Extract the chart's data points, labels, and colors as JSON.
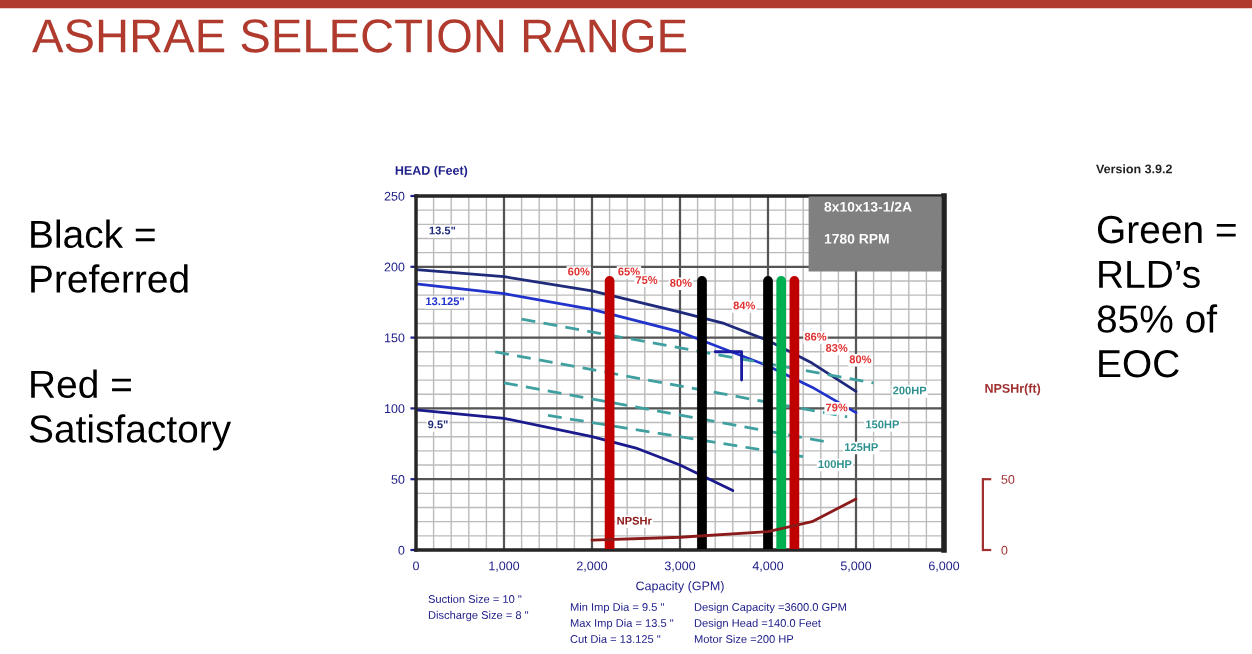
{
  "chart_data": {
    "type": "line",
    "title": "ASHRAE SELECTION RANGE",
    "xlabel": "Capacity (GPM)",
    "ylabel": "HEAD (Feet)",
    "y2label": "NPSHr(ft)",
    "xlim": [
      0,
      6000
    ],
    "xticks": [
      0,
      {
        "value": 1000,
        "label": "1,000"
      },
      {
        "value": 2000,
        "label": "2,000"
      },
      {
        "value": 3000,
        "label": "3,000"
      },
      {
        "value": 4000,
        "label": "4,000"
      },
      {
        "value": 5000,
        "label": "5,000"
      },
      {
        "value": 6000,
        "label": "6,000"
      }
    ],
    "ylim": [
      0,
      250
    ],
    "yticks": [
      0,
      50,
      100,
      150,
      200,
      250
    ],
    "y2lim": [
      0,
      250
    ],
    "y2ticks": [
      0,
      50
    ],
    "grid": true,
    "marker": "none",
    "series": [
      {
        "color": "#1f2a7a",
        "x": [
          0,
          1000,
          2000,
          3000,
          3500,
          4000,
          4500,
          5000
        ],
        "values": [
          198,
          193,
          183,
          168,
          160,
          148,
          132,
          112
        ]
      },
      {
        "color": "#2233cc",
        "x": [
          0,
          1000,
          2000,
          3000,
          4000,
          4500,
          5000
        ],
        "values": [
          188,
          181,
          170,
          154,
          130,
          115,
          97
        ]
      },
      {
        "color": "#1a1a8c",
        "x": [
          0,
          1000,
          2000,
          2500,
          3000,
          3600
        ],
        "values": [
          99,
          93,
          80,
          72,
          60,
          42
        ]
      },
      {
        "color": "#8b1a1a",
        "axis": "y2",
        "x": [
          2000,
          3000,
          4000,
          4500,
          5000
        ],
        "values": [
          7,
          9,
          13,
          20,
          36
        ]
      },
      {
        "color": "#40a0a0",
        "line_style": "dashed",
        "x": [
          1200,
          5200
        ],
        "values": [
          163,
          118
        ]
      },
      {
        "color": "#40a0a0",
        "line_style": "dashed",
        "x": [
          900,
          4900
        ],
        "values": [
          140,
          94
        ]
      },
      {
        "color": "#40a0a0",
        "line_style": "dashed",
        "x": [
          1000,
          4700
        ],
        "values": [
          118,
          76
        ]
      },
      {
        "color": "#40a0a0",
        "line_style": "dashed",
        "x": [
          1500,
          4400
        ],
        "values": [
          95,
          66
        ]
      },
      {
        "color": "#1a1aa0",
        "x": [
          3400,
          3700,
          3700
        ],
        "values": [
          140,
          140,
          120
        ]
      }
    ],
    "ref_lines": [
      {
        "axis": "x",
        "value": 2200,
        "color": "#c00000"
      },
      {
        "axis": "x",
        "value": 3250,
        "color": "#000000"
      },
      {
        "axis": "x",
        "value": 4000,
        "color": "#000000"
      },
      {
        "axis": "x",
        "value": 4150,
        "color": "#00b050"
      },
      {
        "axis": "x",
        "value": 4300,
        "color": "#c00000"
      }
    ],
    "annotations": [
      "Black =\nPreferred",
      "Red =\nSatisfactory",
      "Green =\nRLD’s\n85% of\nEOC",
      "Version 3.9.2",
      "8x10x13-1/2A",
      "1780 RPM",
      "Suction Size = 10 \"",
      "Discharge Size = 8 \"",
      "Min Imp Dia = 9.5 \"",
      "Max Imp Dia = 13.5 \"",
      "Cut Dia = 13.125 \"",
      "Design Capacity =3600.0 GPM",
      "Design Head =140.0 Feet",
      "Motor Size =200 HP",
      "13.5\"",
      "13.125\"",
      "9.5\"",
      "NPSHr",
      "200HP",
      "150HP",
      "125HP",
      "100HP",
      "60%",
      "65%",
      "75%",
      "80%",
      "84%",
      "86%",
      "83%",
      "80%",
      "79%"
    ]
  }
}
